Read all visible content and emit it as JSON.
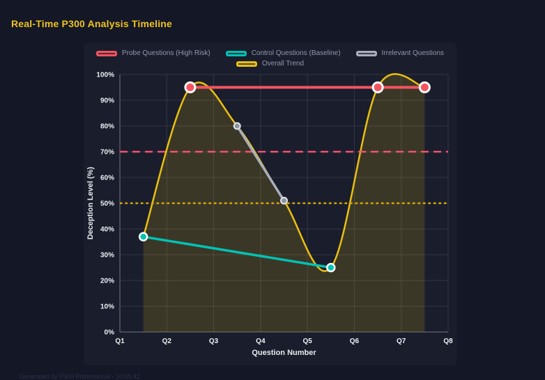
{
  "page": {
    "title": "Real-Time P300 Analysis Timeline",
    "footer": "Generated by P300 Professional - 10:05:42"
  },
  "colors": {
    "background": "#141726",
    "panel": "#1a1d2c",
    "title": "#eec31d",
    "grid": "rgba(255,255,255,0.11)",
    "axis": "rgba(255,255,255,0.30)",
    "tick": "#eef0f4",
    "axis-title": "#e8eaf0",
    "legend": "#9198ad",
    "footer": "#2b3148"
  },
  "chart_data": {
    "type": "line",
    "title": "Real-Time P300 Analysis Timeline",
    "xlabel": "Question Number",
    "ylabel": "Deception Level (%)",
    "xlim": [
      1,
      8
    ],
    "ylim": [
      0,
      100
    ],
    "grid": true,
    "legend_position": "top",
    "x_ticks": [
      {
        "value": 1,
        "label": "Q1"
      },
      {
        "value": 2,
        "label": "Q2"
      },
      {
        "value": 3,
        "label": "Q3"
      },
      {
        "value": 4,
        "label": "Q4"
      },
      {
        "value": 5,
        "label": "Q5"
      },
      {
        "value": 6,
        "label": "Q6"
      },
      {
        "value": 7,
        "label": "Q7"
      },
      {
        "value": 8,
        "label": "Q8"
      }
    ],
    "y_ticks": [
      {
        "value": 0,
        "label": "0%"
      },
      {
        "value": 10,
        "label": "10%"
      },
      {
        "value": 20,
        "label": "20%"
      },
      {
        "value": 30,
        "label": "30%"
      },
      {
        "value": 40,
        "label": "40%"
      },
      {
        "value": 50,
        "label": "50%"
      },
      {
        "value": 60,
        "label": "60%"
      },
      {
        "value": 70,
        "label": "70%"
      },
      {
        "value": 80,
        "label": "80%"
      },
      {
        "value": 90,
        "label": "90%"
      },
      {
        "value": 100,
        "label": "100%"
      }
    ],
    "series": [
      {
        "name": "Probe Questions (High Risk)",
        "slug": "probe-questions",
        "color": "#f4545f",
        "line_width": 4,
        "smooth": false,
        "fill": false,
        "marker_radius": 7,
        "marker_color": "#f4545f",
        "marker_border": "#ffffff",
        "marker_border_width": 3,
        "points": [
          [
            2.5,
            95
          ],
          [
            6.5,
            95
          ],
          [
            7.5,
            95
          ]
        ]
      },
      {
        "name": "Control Questions (Baseline)",
        "slug": "control-questions",
        "color": "#00c2b3",
        "line_width": 3.5,
        "smooth": false,
        "fill": false,
        "marker_radius": 5.5,
        "marker_color": "#00c2b3",
        "marker_border": "#ffffff",
        "marker_border_width": 2.5,
        "points": [
          [
            1.5,
            37
          ],
          [
            5.5,
            25
          ]
        ]
      },
      {
        "name": "Irrelevant Questions",
        "slug": "irrelevant-questions",
        "color": "#a9aeba",
        "line_width": 3.5,
        "smooth": false,
        "fill": false,
        "marker_radius": 4.5,
        "marker_color": "#8e93a0",
        "marker_border": "#e2e4ea",
        "marker_border_width": 2,
        "points": [
          [
            3.5,
            80
          ],
          [
            4.5,
            51
          ]
        ]
      },
      {
        "name": "Overall Trend",
        "slug": "overall-trend",
        "color": "#eac010",
        "line_width": 2.5,
        "smooth": true,
        "fill": true,
        "fill_opacity": 0.16,
        "marker_radius": 0,
        "points": [
          [
            1.5,
            37
          ],
          [
            2.5,
            95
          ],
          [
            3.5,
            80
          ],
          [
            4.5,
            51
          ],
          [
            5.5,
            25
          ],
          [
            6.5,
            95
          ],
          [
            7.5,
            95
          ]
        ]
      }
    ],
    "thresholds": [
      {
        "name": "high-risk-threshold",
        "value": 70,
        "color": "#f4546e",
        "dash": "11 7",
        "width": 2.5
      },
      {
        "name": "baseline-threshold",
        "value": 50,
        "color": "#d9ac00",
        "dash": "3.5 4",
        "width": 2.5
      }
    ],
    "legend_rows": [
      [
        0,
        1,
        2
      ],
      [
        3
      ]
    ]
  }
}
